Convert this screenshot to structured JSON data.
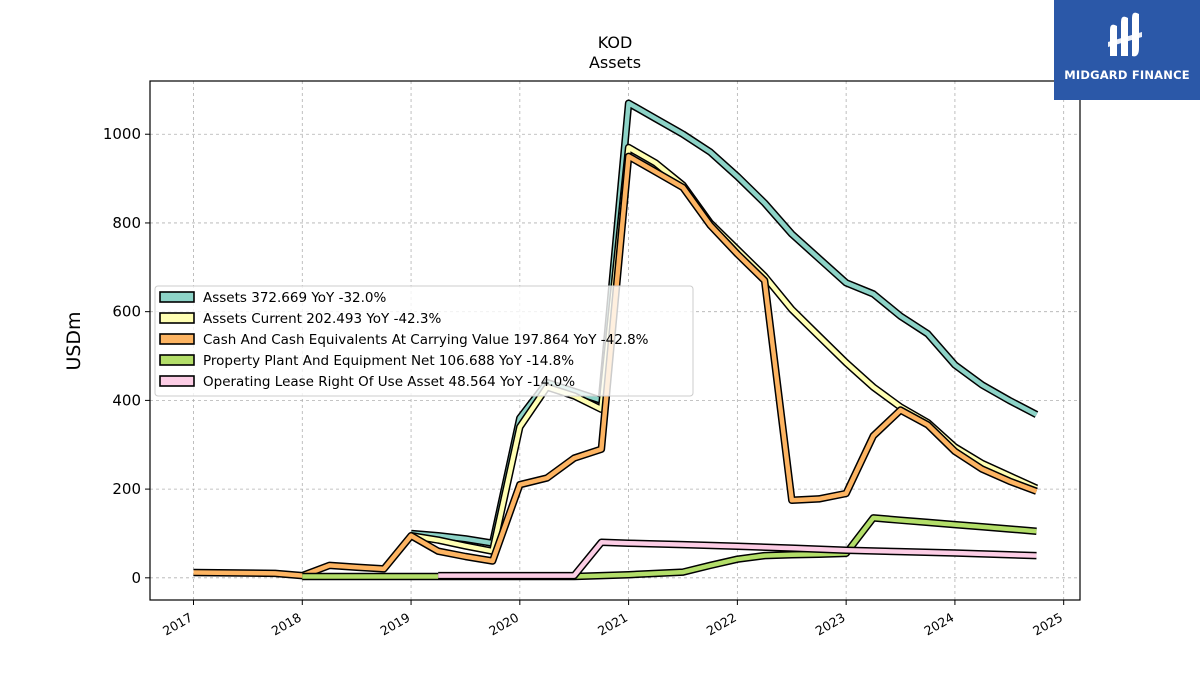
{
  "logo": {
    "text": "MIDGARD FINANCE",
    "color": "#2b58a8"
  },
  "chart_data": {
    "type": "line",
    "title": "KOD",
    "subtitle": "Assets",
    "ylabel": "USDm",
    "xlim": [
      2016.6,
      2025.15
    ],
    "ylim": [
      -50,
      1120
    ],
    "x_ticks": [
      "2017",
      "2018",
      "2019",
      "2020",
      "2021",
      "2022",
      "2023",
      "2024",
      "2025"
    ],
    "y_ticks": [
      0,
      200,
      400,
      600,
      800,
      1000
    ],
    "grid": true,
    "legend_position": "center-left",
    "series": [
      {
        "name": "Assets",
        "legend": "Assets  372.669 YoY -32.0%",
        "color": "#8dd3c7",
        "points": [
          [
            2019.0,
            100
          ],
          [
            2019.25,
            95
          ],
          [
            2019.5,
            88
          ],
          [
            2019.75,
            78
          ],
          [
            2020.0,
            360
          ],
          [
            2020.25,
            440
          ],
          [
            2020.5,
            420
          ],
          [
            2020.75,
            400
          ],
          [
            2021.0,
            1070
          ],
          [
            2021.25,
            1035
          ],
          [
            2021.5,
            1000
          ],
          [
            2021.75,
            960
          ],
          [
            2022.0,
            905
          ],
          [
            2022.25,
            845
          ],
          [
            2022.5,
            775
          ],
          [
            2022.75,
            720
          ],
          [
            2023.0,
            665
          ],
          [
            2023.25,
            640
          ],
          [
            2023.5,
            590
          ],
          [
            2023.75,
            550
          ],
          [
            2024.0,
            480
          ],
          [
            2024.25,
            435
          ],
          [
            2024.5,
            400
          ],
          [
            2024.75,
            368
          ]
        ]
      },
      {
        "name": "Assets Current",
        "legend": "Assets Current  202.493 YoY -42.3%",
        "color": "#ffffb3",
        "points": [
          [
            2019.0,
            95
          ],
          [
            2019.25,
            85
          ],
          [
            2019.5,
            72
          ],
          [
            2019.75,
            60
          ],
          [
            2020.0,
            340
          ],
          [
            2020.25,
            430
          ],
          [
            2020.5,
            410
          ],
          [
            2020.75,
            380
          ],
          [
            2021.0,
            970
          ],
          [
            2021.25,
            935
          ],
          [
            2021.5,
            885
          ],
          [
            2021.75,
            800
          ],
          [
            2022.0,
            740
          ],
          [
            2022.25,
            680
          ],
          [
            2022.5,
            605
          ],
          [
            2022.75,
            545
          ],
          [
            2023.0,
            485
          ],
          [
            2023.25,
            430
          ],
          [
            2023.5,
            385
          ],
          [
            2023.75,
            350
          ],
          [
            2024.0,
            295
          ],
          [
            2024.25,
            258
          ],
          [
            2024.5,
            230
          ],
          [
            2024.75,
            202
          ]
        ]
      },
      {
        "name": "Cash And Cash Equivalents At Carrying Value",
        "legend": "Cash And Cash Equivalents At Carrying Value  197.864 YoY -42.8%",
        "color": "#fdb462",
        "points": [
          [
            2017.0,
            12
          ],
          [
            2017.75,
            10
          ],
          [
            2018.0,
            5
          ],
          [
            2018.25,
            28
          ],
          [
            2018.5,
            24
          ],
          [
            2018.75,
            20
          ],
          [
            2019.0,
            95
          ],
          [
            2019.25,
            60
          ],
          [
            2019.5,
            48
          ],
          [
            2019.75,
            38
          ],
          [
            2020.0,
            210
          ],
          [
            2020.25,
            225
          ],
          [
            2020.5,
            270
          ],
          [
            2020.75,
            290
          ],
          [
            2021.0,
            950
          ],
          [
            2021.25,
            915
          ],
          [
            2021.5,
            880
          ],
          [
            2021.75,
            795
          ],
          [
            2022.0,
            730
          ],
          [
            2022.25,
            670
          ],
          [
            2022.5,
            175
          ],
          [
            2022.75,
            178
          ],
          [
            2023.0,
            190
          ],
          [
            2023.25,
            320
          ],
          [
            2023.5,
            378
          ],
          [
            2023.75,
            345
          ],
          [
            2024.0,
            285
          ],
          [
            2024.25,
            245
          ],
          [
            2024.5,
            218
          ],
          [
            2024.75,
            195
          ]
        ]
      },
      {
        "name": "Property Plant And Equipment Net",
        "legend": "Property Plant And Equipment Net  106.688 YoY -14.8%",
        "color": "#b3de69",
        "points": [
          [
            2018.0,
            3
          ],
          [
            2018.75,
            3
          ],
          [
            2019.0,
            3
          ],
          [
            2019.75,
            3
          ],
          [
            2020.0,
            3
          ],
          [
            2020.5,
            3
          ],
          [
            2021.0,
            7
          ],
          [
            2021.5,
            13
          ],
          [
            2021.75,
            28
          ],
          [
            2022.0,
            42
          ],
          [
            2022.25,
            50
          ],
          [
            2022.5,
            52
          ],
          [
            2022.75,
            53
          ],
          [
            2023.0,
            55
          ],
          [
            2023.25,
            135
          ],
          [
            2023.5,
            130
          ],
          [
            2023.75,
            125
          ],
          [
            2024.0,
            120
          ],
          [
            2024.25,
            115
          ],
          [
            2024.5,
            110
          ],
          [
            2024.75,
            105
          ]
        ]
      },
      {
        "name": "Operating Lease Right Of Use Asset",
        "legend": "Operating Lease Right Of Use Asset  48.564 YoY -14.0%",
        "color": "#fccde5",
        "points": [
          [
            2019.25,
            5
          ],
          [
            2019.75,
            5
          ],
          [
            2020.0,
            5
          ],
          [
            2020.5,
            5
          ],
          [
            2020.75,
            80
          ],
          [
            2021.0,
            78
          ],
          [
            2021.5,
            75
          ],
          [
            2022.0,
            71
          ],
          [
            2022.5,
            67
          ],
          [
            2023.0,
            62
          ],
          [
            2023.5,
            59
          ],
          [
            2024.0,
            56
          ],
          [
            2024.5,
            52
          ],
          [
            2024.75,
            50
          ]
        ]
      }
    ]
  }
}
